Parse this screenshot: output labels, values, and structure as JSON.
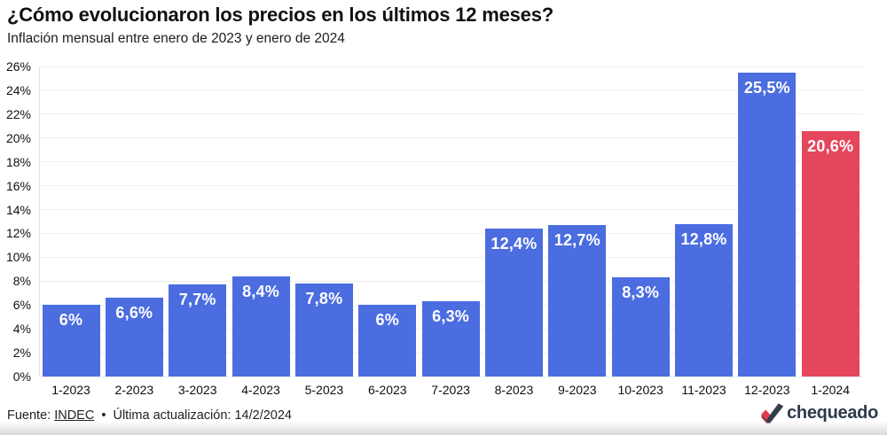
{
  "header": {
    "title": "¿Cómo evolucionaron los precios en los últimos 12 meses?",
    "subtitle": "Inflación mensual entre enero de 2023 y enero de 2024"
  },
  "chart_data": {
    "type": "bar",
    "title": "¿Cómo evolucionaron los precios en los últimos 12 meses?",
    "subtitle": "Inflación mensual entre enero de 2023 y enero de 2024",
    "categories": [
      "1-2023",
      "2-2023",
      "3-2023",
      "4-2023",
      "5-2023",
      "6-2023",
      "7-2023",
      "8-2023",
      "9-2023",
      "10-2023",
      "11-2023",
      "12-2023",
      "1-2024"
    ],
    "values": [
      6,
      6.6,
      7.7,
      8.4,
      7.8,
      6,
      6.3,
      12.4,
      12.7,
      8.3,
      12.8,
      25.5,
      20.6
    ],
    "value_labels": [
      "6%",
      "6,6%",
      "7,7%",
      "8,4%",
      "7,8%",
      "6%",
      "6,3%",
      "12,4%",
      "12,7%",
      "8,3%",
      "12,8%",
      "25,5%",
      "20,6%"
    ],
    "highlight_index": 12,
    "xlabel": "",
    "ylabel": "",
    "ylim": [
      0,
      26
    ],
    "ytick_step": 2,
    "yticks": [
      "0%",
      "2%",
      "4%",
      "6%",
      "8%",
      "10%",
      "12%",
      "14%",
      "16%",
      "18%",
      "20%",
      "22%",
      "24%",
      "26%"
    ],
    "grid": "horizontal",
    "legend": "none",
    "colors": {
      "bar": "#4b6de0",
      "highlight_bar": "#e4475c",
      "bar_label": "#ffffff",
      "gridline": "#efefef",
      "axis": "#e3e3e3"
    }
  },
  "footer": {
    "source_prefix": "Fuente:",
    "source_link": "INDEC",
    "separator": "•",
    "updated": "Última actualización: 14/2/2024"
  },
  "logo": {
    "text": "chequeado",
    "colors": {
      "text": "#2e3a48",
      "check_dark": "#333c47",
      "check_red": "#e23b50",
      "check_red_dark": "#a2273a"
    }
  }
}
